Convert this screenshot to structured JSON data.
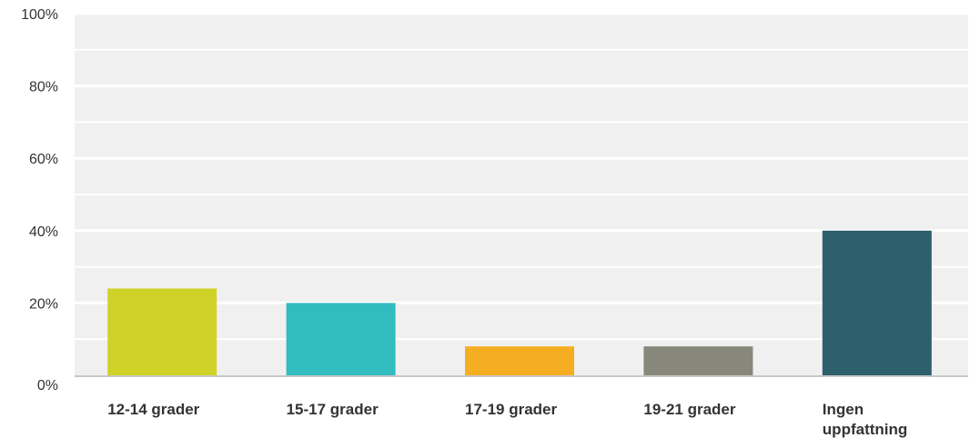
{
  "chart_data": {
    "type": "bar",
    "title": "",
    "xlabel": "",
    "ylabel": "",
    "categories": [
      "12-14 grader",
      "15-17 grader",
      "17-19 grader",
      "19-21 grader",
      "Ingen uppfattning"
    ],
    "values": [
      24,
      20,
      8,
      8,
      40
    ],
    "colors": [
      "#d0d228",
      "#31bcc0",
      "#f5ad22",
      "#87887a",
      "#2e5f6c"
    ],
    "ylim": [
      0,
      100
    ],
    "yticks": [
      0,
      20,
      40,
      60,
      80,
      100
    ],
    "ytick_labels": [
      "0%",
      "20%",
      "40%",
      "60%",
      "80%",
      "100%"
    ],
    "grid": true,
    "background": "#f0f0f0",
    "gridline_color": "#ffffff"
  }
}
